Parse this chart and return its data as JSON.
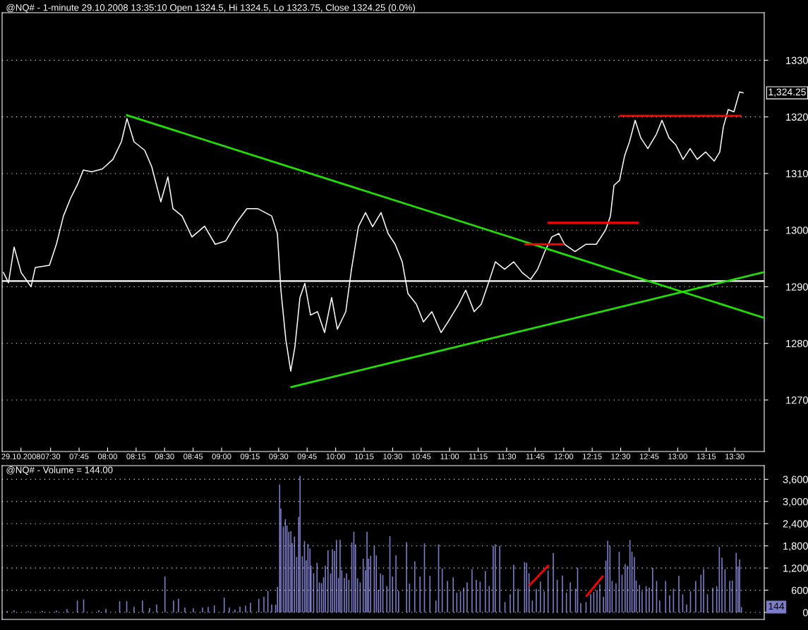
{
  "chart_data": [
    {
      "type": "line",
      "title": "@NQ# - 1-minute 29.10.2008 13:35:10 Open 1324.5, Hi 1324.5, Lo 1323.75, Close 1324.25 (0.0%)",
      "series": [
        {
          "color": "#ffffff",
          "x": [
            7.087,
            7.131,
            7.18,
            7.242,
            7.329,
            7.366,
            7.49,
            7.551,
            7.613,
            7.675,
            7.737,
            7.787,
            7.861,
            7.954,
            8.047,
            8.121,
            8.17,
            8.232,
            8.325,
            8.387,
            8.467,
            8.529,
            8.573,
            8.653,
            8.74,
            8.851,
            8.944,
            9.037,
            9.13,
            9.222,
            9.315,
            9.439,
            9.489,
            9.52,
            9.563,
            9.606,
            9.643,
            9.687,
            9.73,
            9.78,
            9.841,
            9.903,
            9.965,
            10.015,
            10.089,
            10.139,
            10.2,
            10.262,
            10.324,
            10.398,
            10.46,
            10.522,
            10.584,
            10.634,
            10.708,
            10.77,
            10.844,
            10.925,
            10.986,
            11.079,
            11.141,
            11.215,
            11.277,
            11.339,
            11.401,
            11.482,
            11.562,
            11.636,
            11.71,
            11.772,
            11.834,
            11.896,
            11.958,
            12.008,
            12.1,
            12.193,
            12.286,
            12.367,
            12.41,
            12.441,
            12.49,
            12.534,
            12.577,
            12.627,
            12.676,
            12.738,
            12.812,
            12.862,
            12.924,
            12.985,
            13.047,
            13.109,
            13.171,
            13.245,
            13.32,
            13.369,
            13.4,
            13.443,
            13.493,
            13.542,
            13.573
          ],
          "values": [
            1292.5,
            1290.7,
            1297,
            1292.5,
            1290,
            1293.4,
            1293.8,
            1297.5,
            1302.5,
            1305.6,
            1308.1,
            1310.6,
            1310.3,
            1310.8,
            1312.5,
            1315.6,
            1319.7,
            1315.6,
            1314.1,
            1311.2,
            1305,
            1309.4,
            1303.8,
            1302.5,
            1298.8,
            1300.7,
            1297.5,
            1298.1,
            1301.3,
            1303.8,
            1303.8,
            1302.5,
            1299.4,
            1289.4,
            1280.7,
            1275.1,
            1279.4,
            1288.1,
            1290.6,
            1285,
            1285.6,
            1281.9,
            1288.1,
            1282.5,
            1285.6,
            1293.1,
            1300.6,
            1303.1,
            1300.6,
            1303.1,
            1299.4,
            1297.5,
            1294.4,
            1288.8,
            1286.9,
            1283.8,
            1285.6,
            1281.9,
            1283.8,
            1286.9,
            1289.4,
            1285.6,
            1286.9,
            1290.6,
            1294.4,
            1293.1,
            1294.4,
            1292.5,
            1291.3,
            1293.1,
            1296.2,
            1298.8,
            1299.4,
            1297.5,
            1296.2,
            1297.5,
            1297.5,
            1300,
            1302.5,
            1307.9,
            1308.8,
            1313.1,
            1315.6,
            1319.4,
            1316.3,
            1314.4,
            1316.9,
            1319.4,
            1316.3,
            1315,
            1312.5,
            1314.4,
            1312.5,
            1313.8,
            1312.2,
            1313.8,
            1318.2,
            1321.3,
            1320.9,
            1324.4,
            1324.25
          ]
        },
        {
          "color": "#22e000",
          "x": [
            8.17,
            13.759
          ],
          "values": [
            1320.3,
            1284.5
          ]
        },
        {
          "color": "#22e000",
          "x": [
            9.612,
            13.759
          ],
          "values": [
            1272.3,
            1292.6
          ]
        },
        {
          "color": "#ff0000",
          "x": [
            11.665,
            11.995
          ],
          "values": [
            1297.5,
            1297.5
          ]
        },
        {
          "color": "#ff0000",
          "x": [
            11.868,
            12.649
          ],
          "values": [
            1301.3,
            1301.3
          ]
        },
        {
          "color": "#ff0000",
          "x": [
            12.496,
            13.549
          ],
          "values": [
            1320.2,
            1320.2
          ]
        }
      ],
      "ref_lines": [
        {
          "axis": "y",
          "value": 1291,
          "color": "#ffffff"
        }
      ],
      "annotations": [
        "1,324.25"
      ],
      "xlim": [
        7.075,
        13.759
      ],
      "ylim": [
        1260.9,
        1338.4
      ],
      "xticks": [
        {
          "value": 7.24,
          "label": "29.10.2008"
        },
        {
          "value": 7.5,
          "label": "07:30"
        },
        {
          "value": 7.75,
          "label": "07:45"
        },
        {
          "value": 8.0,
          "label": "08:00"
        },
        {
          "value": 8.25,
          "label": "08:15"
        },
        {
          "value": 8.5,
          "label": "08:30"
        },
        {
          "value": 8.75,
          "label": "08:45"
        },
        {
          "value": 9.0,
          "label": "09:00"
        },
        {
          "value": 9.25,
          "label": "09:15"
        },
        {
          "value": 9.5,
          "label": "09:30"
        },
        {
          "value": 9.75,
          "label": "09:45"
        },
        {
          "value": 10.0,
          "label": "10:00"
        },
        {
          "value": 10.25,
          "label": "10:15"
        },
        {
          "value": 10.5,
          "label": "10:30"
        },
        {
          "value": 10.75,
          "label": "10:45"
        },
        {
          "value": 11.0,
          "label": "11:00"
        },
        {
          "value": 11.25,
          "label": "11:15"
        },
        {
          "value": 11.5,
          "label": "11:30"
        },
        {
          "value": 11.75,
          "label": "11:45"
        },
        {
          "value": 12.0,
          "label": "12:00"
        },
        {
          "value": 12.25,
          "label": "12:15"
        },
        {
          "value": 12.5,
          "label": "12:30"
        },
        {
          "value": 12.75,
          "label": "12:45"
        },
        {
          "value": 13.0,
          "label": "13:00"
        },
        {
          "value": 13.25,
          "label": "13:15"
        },
        {
          "value": 13.5,
          "label": "13:30"
        }
      ],
      "yticks": [
        1270,
        1280,
        1290,
        1300,
        1310,
        1320,
        1330
      ],
      "grid": "y",
      "legend": false
    },
    {
      "type": "bar",
      "title": "@NQ# - Volume = 144.00",
      "tick_labels": "y",
      "series": [
        {
          "color": "#7b7bc8",
          "x": [
            7.118,
            7.18,
            7.304,
            7.428,
            7.551,
            7.644,
            7.735,
            7.79,
            7.923,
            7.985,
            8.106,
            8.168,
            8.232,
            8.306,
            8.368,
            8.43,
            8.503,
            8.579,
            8.622,
            8.678,
            8.752,
            8.833,
            8.882,
            8.936,
            9.023,
            9.068,
            9.117,
            9.161,
            9.21,
            9.253,
            9.326,
            9.371,
            9.406,
            9.439,
            9.474,
            9.49,
            9.509,
            9.52,
            9.541,
            9.559,
            9.573,
            9.589,
            9.607,
            9.619,
            9.639,
            9.658,
            9.676,
            9.688,
            9.708,
            9.727,
            9.742,
            9.757,
            9.775,
            9.784,
            9.807,
            9.837,
            9.857,
            9.876,
            9.894,
            9.91,
            9.933,
            9.956,
            9.972,
            9.99,
            10.007,
            10.025,
            10.039,
            10.054,
            10.077,
            10.096,
            10.116,
            10.142,
            10.16,
            10.174,
            10.192,
            10.215,
            10.242,
            10.261,
            10.275,
            10.288,
            10.307,
            10.339,
            10.357,
            10.375,
            10.394,
            10.414,
            10.449,
            10.476,
            10.499,
            10.529,
            10.552,
            10.622,
            10.648,
            10.694,
            10.74,
            10.779,
            10.827,
            10.88,
            10.903,
            10.935,
            10.981,
            11.031,
            11.063,
            11.095,
            11.123,
            11.153,
            11.196,
            11.233,
            11.267,
            11.313,
            11.347,
            11.382,
            11.4,
            11.439,
            11.485,
            11.531,
            11.561,
            11.6,
            11.657,
            11.675,
            11.696,
            11.725,
            11.76,
            11.796,
            11.829,
            11.863,
            11.909,
            11.943,
            11.989,
            12.024,
            12.058,
            12.104,
            12.122,
            12.15,
            12.196,
            12.237,
            12.264,
            12.292,
            12.317,
            12.349,
            12.37,
            12.386,
            12.406,
            12.425,
            12.459,
            12.487,
            12.512,
            12.539,
            12.558,
            12.581,
            12.599,
            12.62,
            12.636,
            12.665,
            12.688,
            12.723,
            12.75,
            12.78,
            12.815,
            12.842,
            12.894,
            12.929,
            12.963,
            13.01,
            13.044,
            13.078,
            13.112,
            13.158,
            13.204,
            13.227,
            13.261,
            13.307,
            13.342,
            13.365,
            13.388,
            13.415,
            13.457,
            13.479,
            13.513,
            13.529,
            13.543,
            13.559
          ],
          "values": [
            40,
            60,
            30,
            40,
            50,
            90,
            320,
            350,
            60,
            90,
            300,
            300,
            150,
            320,
            120,
            210,
            970,
            320,
            370,
            130,
            110,
            130,
            150,
            190,
            400,
            130,
            70,
            160,
            180,
            260,
            370,
            420,
            580,
            210,
            210,
            690,
            3460,
            2810,
            2320,
            2520,
            2350,
            2180,
            2200,
            1870,
            2050,
            1500,
            2580,
            3690,
            1520,
            1930,
            1410,
            1850,
            1730,
            1260,
            1060,
            1340,
            810,
            790,
            950,
            1260,
            1680,
            1050,
            1710,
            1660,
            1960,
            930,
            1960,
            1140,
            930,
            1060,
            880,
            1890,
            2180,
            1840,
            920,
            810,
            1450,
            1140,
            2180,
            1450,
            1530,
            1800,
            1540,
            610,
            1050,
            1010,
            710,
            2060,
            970,
            1540,
            580,
            1900,
            780,
            1380,
            970,
            1870,
            990,
            320,
            1840,
            1190,
            850,
            950,
            530,
            570,
            670,
            810,
            1170,
            880,
            830,
            1120,
            710,
            1800,
            1840,
            1800,
            280,
            490,
            1290,
            640,
            1360,
            1340,
            1060,
            320,
            640,
            830,
            570,
            1130,
            1610,
            880,
            1000,
            530,
            810,
            640,
            1210,
            250,
            280,
            490,
            550,
            600,
            760,
            420,
            1400,
            1940,
            1800,
            850,
            790,
            1640,
            1020,
            1310,
            1260,
            1960,
            1640,
            1500,
            860,
            740,
            570,
            710,
            670,
            1200,
            850,
            320,
            850,
            460,
            640,
            990,
            490,
            210,
            570,
            850,
            1020,
            1170,
            490,
            670,
            710,
            1770,
            1480,
            1170,
            850,
            860,
            1610,
            1240,
            1430,
            144
          ]
        },
        {
          "type": "line",
          "color": "#ff0000",
          "x": [
            11.702,
            11.863
          ],
          "values": [
            740,
            1260
          ]
        },
        {
          "type": "line",
          "color": "#ff0000",
          "x": [
            12.202,
            12.34
          ],
          "values": [
            450,
            970
          ]
        }
      ],
      "annotations": [
        "144"
      ],
      "xlim": [
        7.075,
        13.759
      ],
      "ylim": [
        -190,
        3970
      ],
      "yticks": [
        0,
        600,
        {
          "value": 1200,
          "label": "1,200"
        },
        {
          "value": 1800,
          "label": "1,800"
        },
        {
          "value": 2400,
          "label": "2,400"
        },
        {
          "value": 3000,
          "label": "3,000"
        },
        {
          "value": 3600,
          "label": "3,600"
        }
      ],
      "grid": "y",
      "legend": false
    }
  ]
}
